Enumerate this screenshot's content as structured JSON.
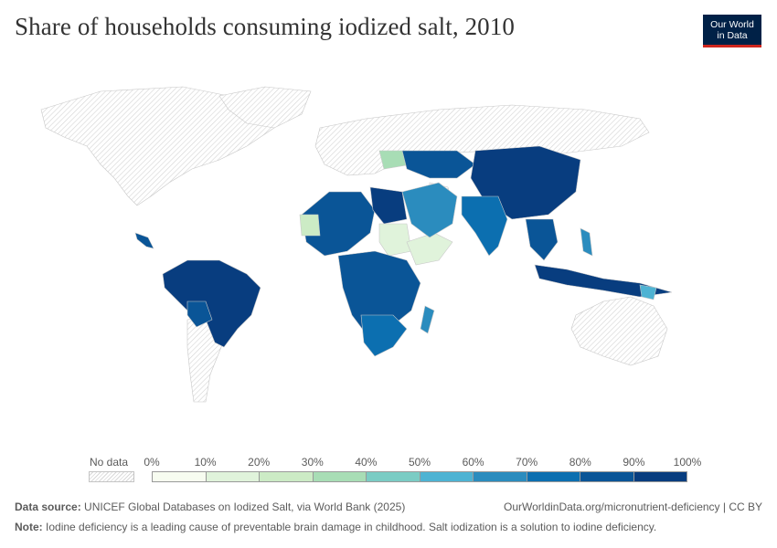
{
  "title": "Share of households consuming iodized salt, 2010",
  "logo": {
    "line1": "Our World",
    "line2": "in Data",
    "bg": "#002147",
    "accent": "#ce261e"
  },
  "legend": {
    "no_data_label": "No data",
    "ticks": [
      "0%",
      "10%",
      "20%",
      "30%",
      "40%",
      "50%",
      "60%",
      "70%",
      "80%",
      "90%",
      "100%"
    ],
    "colors": [
      "#f7fcf0",
      "#e0f3db",
      "#ccebc5",
      "#a8ddb5",
      "#7bccc4",
      "#4eb3d3",
      "#2b8cbe",
      "#0c6fb0",
      "#0a5597",
      "#083d7f"
    ]
  },
  "footer": {
    "source_label": "Data source:",
    "source_text": "UNICEF Global Databases on Iodized Salt, via World Bank (2025)",
    "url_text": "OurWorldinData.org/micronutrient-deficiency | CC BY",
    "note_label": "Note:",
    "note_text": "Iodine deficiency is a leading cause of preventable brain damage in childhood. Salt iodization is a solution to iodine deficiency."
  }
}
